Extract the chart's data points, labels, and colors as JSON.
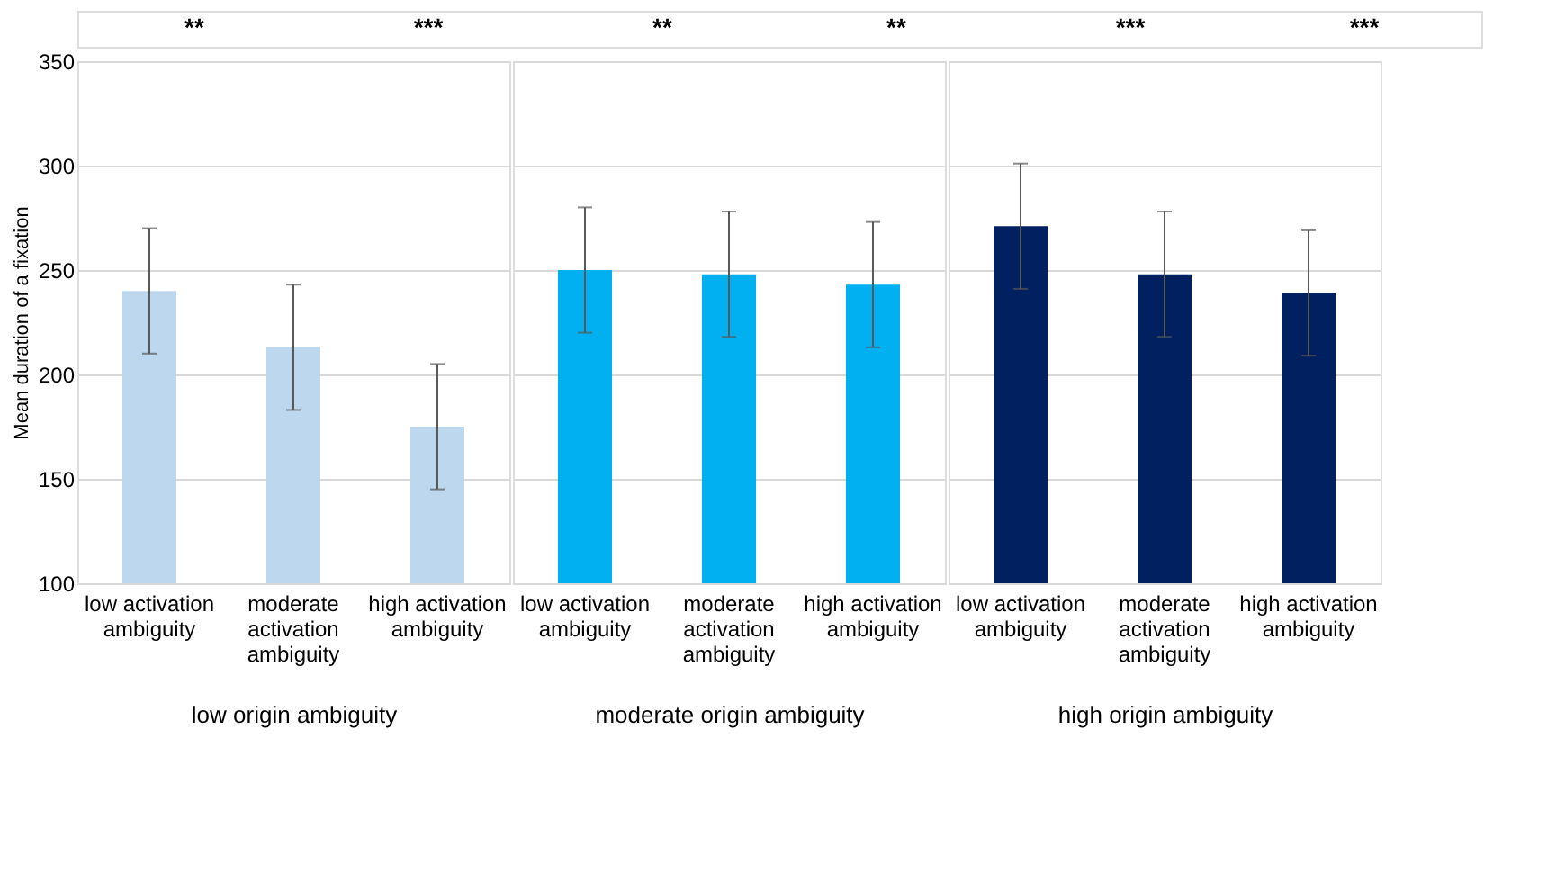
{
  "chart_data": [
    {
      "type": "bar",
      "ylabel": "Mean duration of a fixation",
      "xlabel": "low origin ambiguity",
      "categories": [
        "low activation ambiguity",
        "moderate activation ambiguity",
        "high activation ambiguity"
      ],
      "values": [
        240,
        213,
        175
      ],
      "errors": [
        30,
        30,
        30
      ],
      "color": "#bdd7ee",
      "ylim": [
        100,
        350
      ],
      "yticks": [
        100,
        150,
        200,
        250,
        300,
        350
      ],
      "grid": "y",
      "annotations": [
        "**",
        "***",
        "**",
        "**",
        "***",
        "***"
      ]
    },
    {
      "type": "bar",
      "xlabel": "moderate origin ambiguity",
      "categories": [
        "low activation ambiguity",
        "moderate activation ambiguity",
        "high activation ambiguity"
      ],
      "values": [
        250,
        248,
        243
      ],
      "errors": [
        30,
        30,
        30
      ],
      "color": "#00b0f0",
      "ylim": [
        100,
        350
      ],
      "yticks": [
        100,
        150,
        200,
        250,
        300,
        350
      ],
      "grid": "y",
      "tick_labels": "x"
    },
    {
      "type": "bar",
      "xlabel": "high origin ambiguity",
      "categories": [
        "low activation ambiguity",
        "moderate activation ambiguity",
        "high activation ambiguity"
      ],
      "values": [
        271,
        248,
        239
      ],
      "errors": [
        30,
        30,
        30
      ],
      "color": "#002060",
      "ylim": [
        100,
        350
      ],
      "yticks": [
        100,
        150,
        200,
        250,
        300,
        350
      ],
      "grid": "y",
      "tick_labels": "x"
    }
  ]
}
